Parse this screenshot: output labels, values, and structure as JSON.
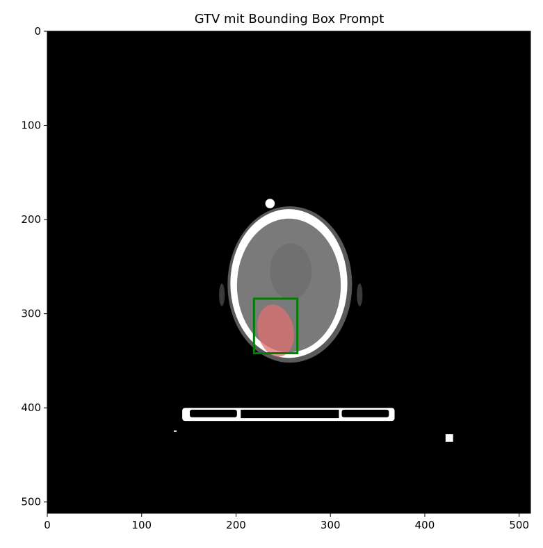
{
  "title": "GTV mit Bounding Box Prompt",
  "image": {
    "description_key": "axial-ct-head-slice",
    "background_color": "#000000",
    "extent": [
      0,
      512,
      512,
      0
    ]
  },
  "axes": {
    "x_ticks": [
      0,
      100,
      200,
      300,
      400,
      500
    ],
    "y_ticks": [
      0,
      100,
      200,
      300,
      400,
      500
    ],
    "xlim": [
      0,
      512
    ],
    "ylim": [
      512,
      0
    ]
  },
  "overlays": {
    "gtv_mask": {
      "color": "#e07070",
      "center_xy": [
        242,
        318
      ],
      "radii_xy": [
        19,
        28
      ]
    },
    "bounding_box": {
      "color": "#008000",
      "x0": 219,
      "y0": 284,
      "x1": 265,
      "y1": 342
    }
  },
  "colors": {
    "box": "#008000",
    "mask": "#e07070",
    "bone": "#ffffff",
    "tissue": "#7a7a7a"
  }
}
